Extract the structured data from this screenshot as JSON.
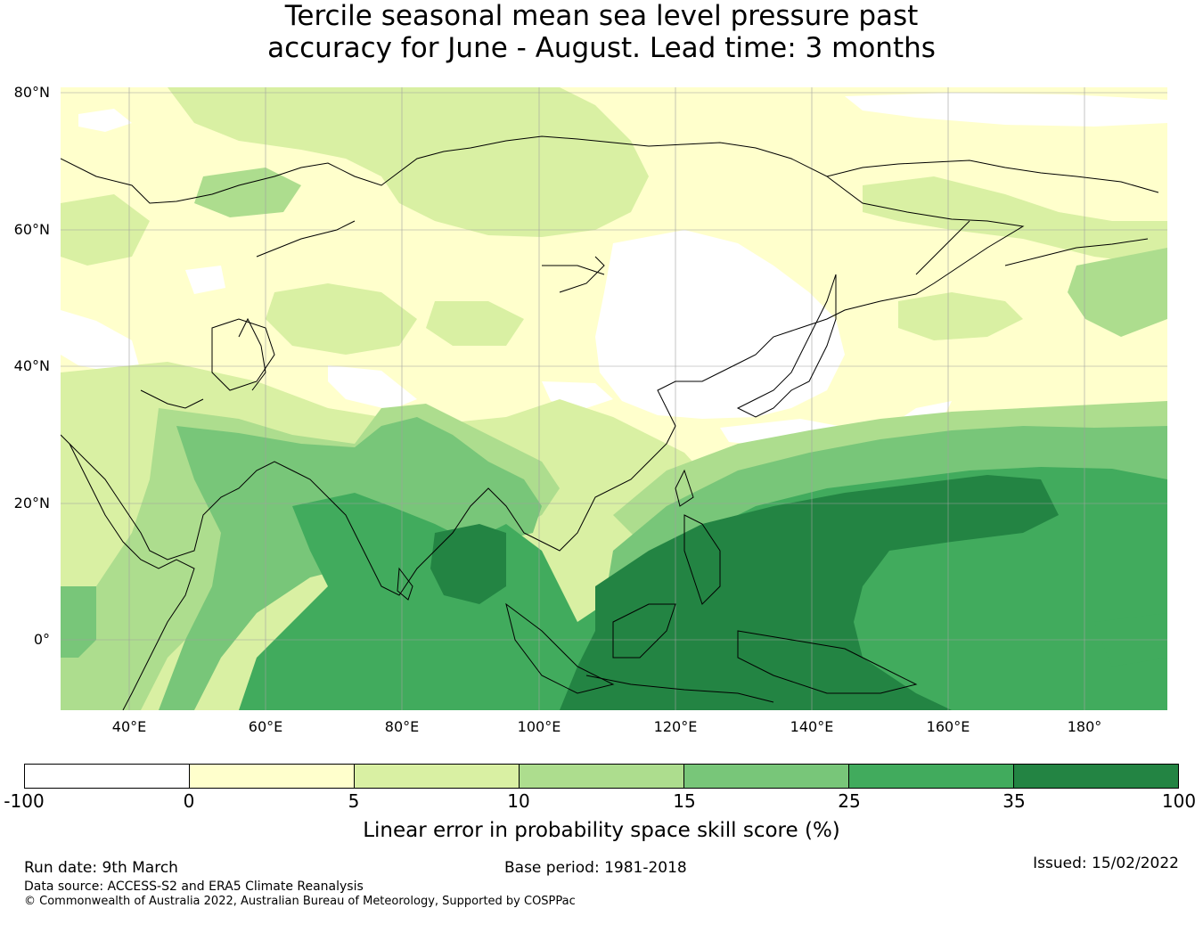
{
  "title": {
    "line1": "Tercile seasonal mean sea level pressure past",
    "line2": "accuracy for June - August. Lead time: 3 months"
  },
  "map": {
    "lat_labels": [
      "80°N",
      "60°N",
      "40°N",
      "20°N",
      "0°"
    ],
    "lon_labels": [
      "40°E",
      "60°E",
      "80°E",
      "100°E",
      "120°E",
      "140°E",
      "160°E",
      "180°"
    ],
    "extent": {
      "lon_min": 30,
      "lon_max": 192,
      "lat_min": -10,
      "lat_max": 81
    }
  },
  "colorbar": {
    "ticks": [
      "-100",
      "0",
      "5",
      "10",
      "15",
      "25",
      "35",
      "100"
    ],
    "colors": [
      "#ffffff",
      "#ffffcc",
      "#d9f0a3",
      "#addd8e",
      "#78c679",
      "#41ab5d",
      "#238443"
    ],
    "label": "Linear error in probability space skill score (%)"
  },
  "footer": {
    "run_date": "Run date: 9th March",
    "base_period": "Base period: 1981-2018",
    "issued": "Issued: 15/02/2022",
    "data_source": "Data source: ACCESS-S2 and ERA5 Climate Reanalysis",
    "copyright": "© Commonwealth of Australia 2022, Australian Bureau of Meteorology, Supported by COSPPac"
  }
}
